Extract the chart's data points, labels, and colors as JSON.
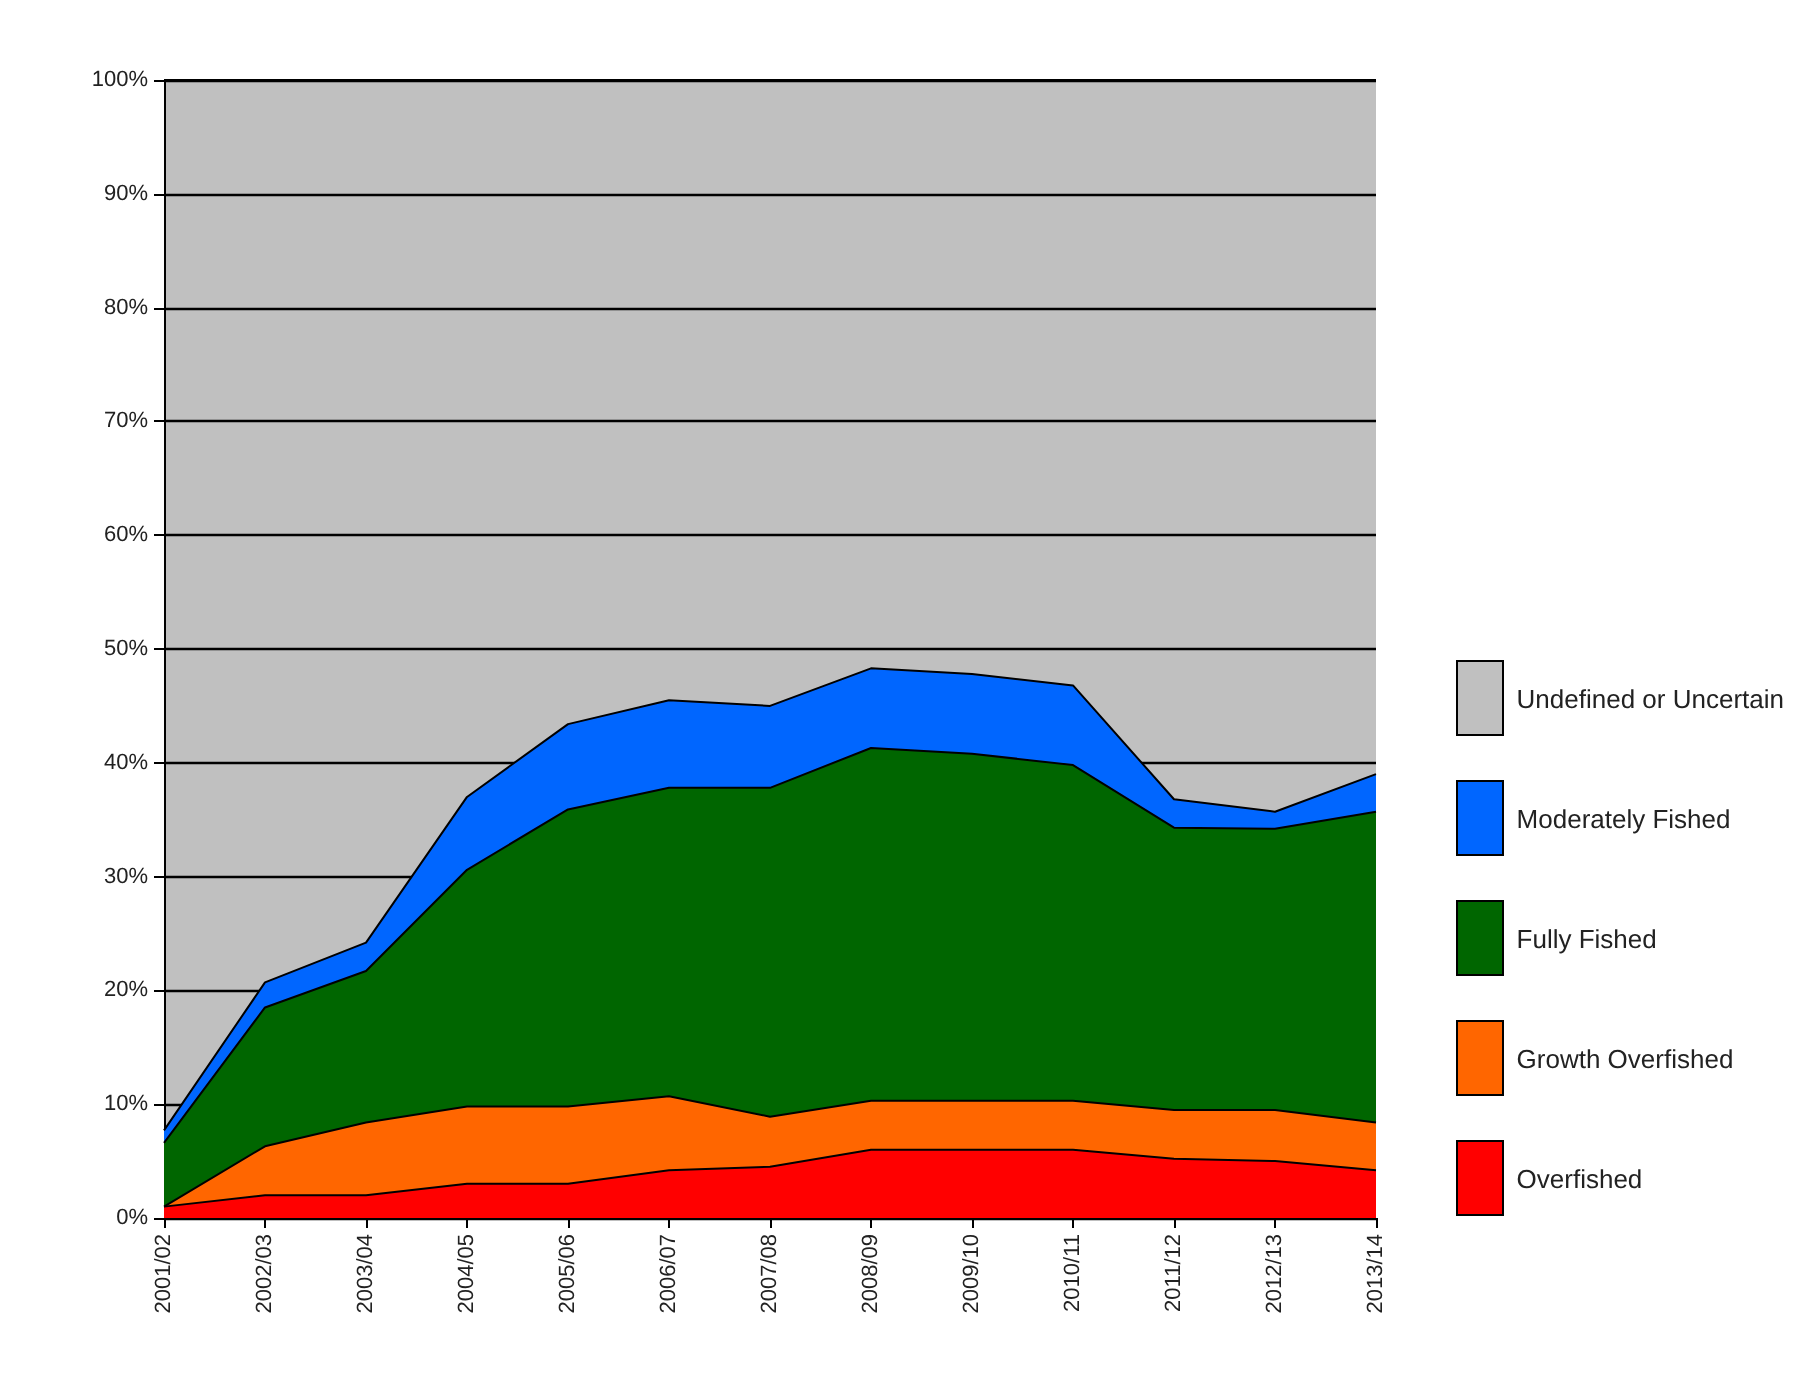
{
  "chart_data": {
    "type": "area",
    "stacked": true,
    "categories": [
      "2001/02",
      "2002/03",
      "2003/04",
      "2004/05",
      "2005/06",
      "2006/07",
      "2007/08",
      "2008/09",
      "2009/10",
      "2010/11",
      "2011/12",
      "2012/13",
      "2013/14"
    ],
    "series": [
      {
        "name": "Overfished",
        "color": "#ff0000",
        "values": [
          1,
          2,
          2,
          3,
          3,
          4.2,
          4.5,
          6,
          6,
          6,
          5.2,
          5,
          4.2
        ]
      },
      {
        "name": "Growth Overfished",
        "color": "#ff6600",
        "values": [
          0,
          4.3,
          6.4,
          6.8,
          6.8,
          6.5,
          4.4,
          4.3,
          4.3,
          4.3,
          4.3,
          4.5,
          4.2
        ]
      },
      {
        "name": "Fully Fished",
        "color": "#006600",
        "values": [
          5.6,
          12.2,
          13.3,
          20.8,
          26.1,
          27.1,
          28.9,
          31,
          30.5,
          29.5,
          24.8,
          24.7,
          27.3
        ]
      },
      {
        "name": "Moderately Fished",
        "color": "#0066ff",
        "values": [
          1.1,
          2.2,
          2.5,
          6.4,
          7.5,
          7.7,
          7.2,
          7,
          7,
          7,
          2.5,
          1.5,
          3.3
        ]
      },
      {
        "name": "Undefined or Uncertain",
        "color": "#c0c0c0",
        "values": [
          92.3,
          79.3,
          75.8,
          63,
          56.6,
          54.5,
          55,
          51.7,
          52.2,
          53.2,
          63.2,
          64.3,
          61
        ]
      }
    ],
    "ylim": [
      0,
      100
    ],
    "yticks": [
      {
        "value": 0,
        "label": "0%"
      },
      {
        "value": 10,
        "label": "10%"
      },
      {
        "value": 20,
        "label": "20%"
      },
      {
        "value": 30,
        "label": "30%"
      },
      {
        "value": 40,
        "label": "40%"
      },
      {
        "value": 50,
        "label": "50%"
      },
      {
        "value": 60,
        "label": "60%"
      },
      {
        "value": 70,
        "label": "70%"
      },
      {
        "value": 80,
        "label": "80%"
      },
      {
        "value": 90,
        "label": "90%"
      },
      {
        "value": 100,
        "label": "100%"
      }
    ],
    "grid": "y",
    "legend": "right"
  }
}
